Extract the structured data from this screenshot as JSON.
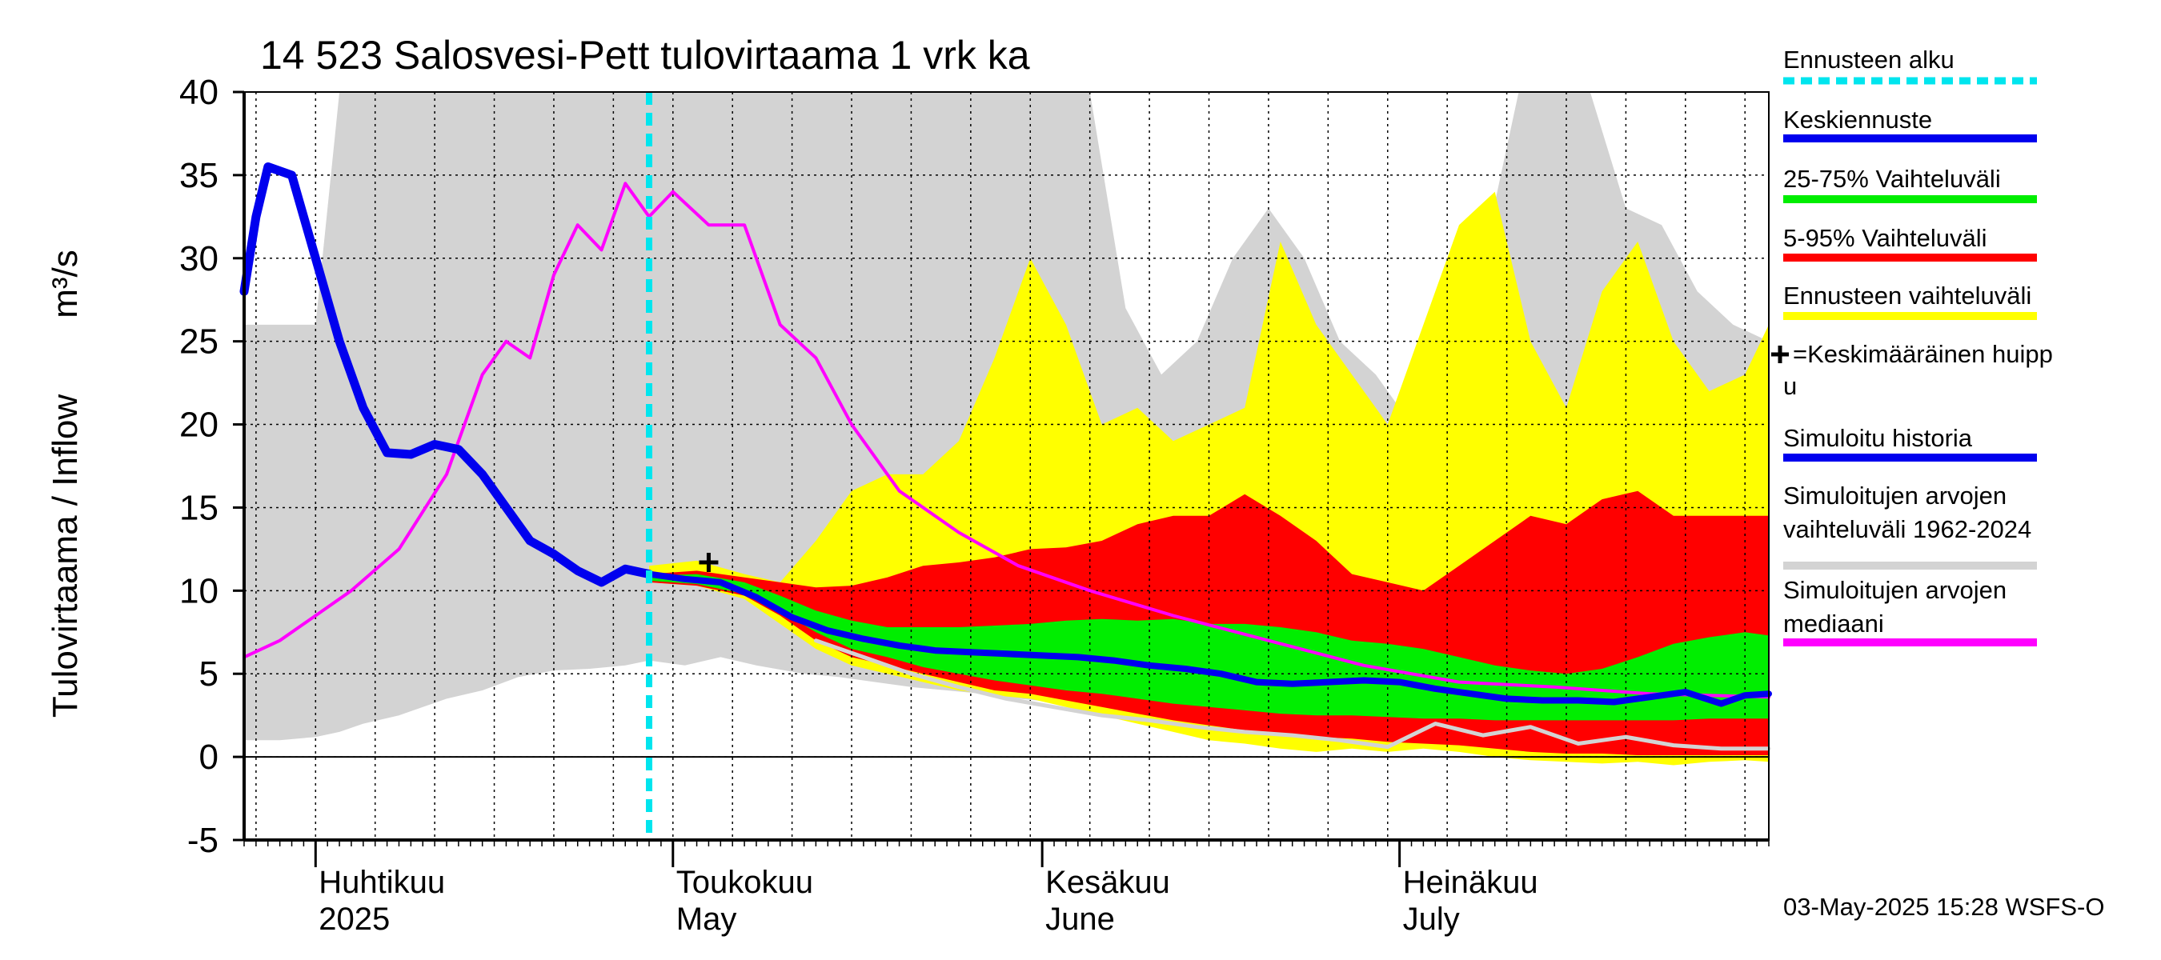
{
  "chart_data": {
    "type": "area",
    "title": "14 523 Salosvesi-Pett tulovirtaama 1 vrk ka",
    "ylabel": "Tulovirtaama / Inflow",
    "yunit": "m³/s",
    "ylim": [
      -5,
      40
    ],
    "yticks": [
      -5,
      0,
      5,
      10,
      15,
      20,
      25,
      30,
      35,
      40
    ],
    "xlim": [
      "2025-03-26",
      "2025-08-01"
    ],
    "grid": true,
    "legend_position": "right",
    "month_labels": [
      {
        "fi": "Huhtikuu",
        "en": "2025",
        "date": "2025-04-01"
      },
      {
        "fi": "Toukokuu",
        "en": "May",
        "date": "2025-05-01"
      },
      {
        "fi": "Kesäkuu",
        "en": "June",
        "date": "2025-06-01"
      },
      {
        "fi": "Heinäkuu",
        "en": "July",
        "date": "2025-07-01"
      }
    ],
    "forecast_start": "2025-04-29",
    "mean_peak": {
      "date": "2025-05-04",
      "value": 11.7
    },
    "colors": {
      "historical_range": "#d3d3d3",
      "forecast_range": "#ffff00",
      "p5_95": "#ff0000",
      "p25_75": "#00ee00",
      "mean_forecast": "#0000ee",
      "simulated_history": "#0000ee",
      "median": "#ff00ff",
      "forecast_start": "#00e5ee",
      "example": "#d3d3d3"
    },
    "series": {
      "historical_range": {
        "x": [
          "2025-03-26",
          "2025-03-29",
          "2025-04-01",
          "2025-04-03",
          "2025-04-05",
          "2025-04-08",
          "2025-04-12",
          "2025-04-15",
          "2025-04-18",
          "2025-04-21",
          "2025-04-24",
          "2025-04-27",
          "2025-04-29",
          "2025-05-02",
          "2025-05-05",
          "2025-05-08",
          "2025-05-12",
          "2025-05-15",
          "2025-05-18",
          "2025-05-21",
          "2025-05-24",
          "2025-05-27",
          "2025-05-30",
          "2025-06-02",
          "2025-06-05",
          "2025-06-08",
          "2025-06-11",
          "2025-06-14",
          "2025-06-17",
          "2025-06-20",
          "2025-06-23",
          "2025-06-26",
          "2025-06-29",
          "2025-07-02",
          "2025-07-05",
          "2025-07-08",
          "2025-07-11",
          "2025-07-14",
          "2025-07-17",
          "2025-07-20",
          "2025-07-23",
          "2025-07-26",
          "2025-07-29",
          "2025-08-01"
        ],
        "low": [
          1,
          1,
          1.2,
          1.5,
          2,
          2.5,
          3.5,
          4,
          4.8,
          5.2,
          5.3,
          5.5,
          5.8,
          5.5,
          6,
          5.5,
          5,
          4.8,
          4.5,
          4.2,
          4,
          3.8,
          3.5,
          3.3,
          3,
          2.8,
          2.7,
          2.5,
          2.2,
          2,
          1.8,
          1.6,
          1.3,
          1.2,
          1,
          0.8,
          0.3,
          0.5,
          0.8,
          1,
          1.2,
          1.2,
          1,
          1
        ],
        "high": [
          26,
          26,
          26,
          40,
          40,
          40,
          40,
          40,
          40,
          40,
          40,
          40,
          40,
          40,
          40,
          40,
          40,
          40,
          40,
          40,
          40,
          40,
          40,
          40,
          40,
          27,
          23,
          25,
          30,
          33,
          30,
          25,
          23,
          20,
          22,
          30,
          40,
          40,
          40,
          33,
          32,
          28,
          26,
          25
        ]
      },
      "forecast_range": {
        "x": [
          "2025-04-29",
          "2025-05-03",
          "2025-05-07",
          "2025-05-10",
          "2025-05-13",
          "2025-05-16",
          "2025-05-19",
          "2025-05-22",
          "2025-05-25",
          "2025-05-28",
          "2025-05-31",
          "2025-06-03",
          "2025-06-06",
          "2025-06-09",
          "2025-06-12",
          "2025-06-15",
          "2025-06-18",
          "2025-06-21",
          "2025-06-24",
          "2025-06-27",
          "2025-06-30",
          "2025-07-03",
          "2025-07-06",
          "2025-07-09",
          "2025-07-12",
          "2025-07-15",
          "2025-07-18",
          "2025-07-21",
          "2025-07-24",
          "2025-07-27",
          "2025-07-30",
          "2025-08-01"
        ],
        "low": [
          10.5,
          10.3,
          9.5,
          8,
          6.5,
          5.5,
          5,
          4.5,
          4,
          3.7,
          3.5,
          3,
          2.5,
          2,
          1.5,
          1,
          0.8,
          0.5,
          0.3,
          0.5,
          0.3,
          0.5,
          0.3,
          0,
          -0.2,
          -0.3,
          -0.4,
          -0.3,
          -0.5,
          -0.3,
          -0.2,
          -0.3
        ],
        "high": [
          11.5,
          11.8,
          11,
          10.5,
          13,
          16,
          17,
          17,
          19,
          24,
          30,
          26,
          20,
          21,
          19,
          20,
          21,
          31,
          26,
          23,
          20,
          26,
          32,
          34,
          25,
          21,
          28,
          31,
          25,
          22,
          23,
          26
        ]
      },
      "p5_95": {
        "x": [
          "2025-04-29",
          "2025-05-03",
          "2025-05-07",
          "2025-05-10",
          "2025-05-13",
          "2025-05-16",
          "2025-05-19",
          "2025-05-22",
          "2025-05-25",
          "2025-05-28",
          "2025-05-31",
          "2025-06-03",
          "2025-06-06",
          "2025-06-09",
          "2025-06-12",
          "2025-06-15",
          "2025-06-18",
          "2025-06-21",
          "2025-06-24",
          "2025-06-27",
          "2025-06-30",
          "2025-07-03",
          "2025-07-06",
          "2025-07-09",
          "2025-07-12",
          "2025-07-15",
          "2025-07-18",
          "2025-07-21",
          "2025-07-24",
          "2025-07-27",
          "2025-07-30",
          "2025-08-01"
        ],
        "low": [
          10.5,
          10.3,
          9.7,
          8.5,
          7,
          6,
          5.5,
          5,
          4.5,
          4,
          3.8,
          3.4,
          3,
          2.6,
          2.2,
          1.9,
          1.6,
          1.3,
          1.2,
          1.1,
          0.9,
          0.8,
          0.7,
          0.5,
          0.3,
          0.2,
          0.2,
          0.1,
          0.1,
          0.1,
          0.1,
          0.1
        ],
        "high": [
          11,
          11.2,
          10.8,
          10.5,
          10.2,
          10.3,
          10.8,
          11.5,
          11.7,
          12,
          12.5,
          12.6,
          13,
          14,
          14.5,
          14.5,
          15.8,
          14.5,
          13,
          11,
          10.5,
          10,
          11.5,
          13,
          14.5,
          14,
          15.5,
          16,
          14.5,
          14.5,
          14.5,
          14.5
        ]
      },
      "p25_75": {
        "x": [
          "2025-04-29",
          "2025-05-03",
          "2025-05-07",
          "2025-05-10",
          "2025-05-13",
          "2025-05-16",
          "2025-05-19",
          "2025-05-22",
          "2025-05-25",
          "2025-05-28",
          "2025-05-31",
          "2025-06-03",
          "2025-06-06",
          "2025-06-09",
          "2025-06-12",
          "2025-06-15",
          "2025-06-18",
          "2025-06-21",
          "2025-06-24",
          "2025-06-27",
          "2025-06-30",
          "2025-07-03",
          "2025-07-06",
          "2025-07-09",
          "2025-07-12",
          "2025-07-15",
          "2025-07-18",
          "2025-07-21",
          "2025-07-24",
          "2025-07-27",
          "2025-07-30",
          "2025-08-01"
        ],
        "low": [
          10.6,
          10.4,
          9.8,
          8.8,
          7.5,
          6.5,
          6,
          5.4,
          5,
          4.6,
          4.3,
          4,
          3.8,
          3.5,
          3.2,
          3,
          2.8,
          2.6,
          2.5,
          2.5,
          2.4,
          2.3,
          2.3,
          2.2,
          2.2,
          2.2,
          2.2,
          2.2,
          2.2,
          2.3,
          2.3,
          2.3
        ],
        "high": [
          10.9,
          11,
          10.5,
          9.7,
          8.8,
          8.2,
          7.8,
          7.8,
          7.8,
          7.9,
          8,
          8.2,
          8.3,
          8.2,
          8.3,
          8,
          8,
          7.8,
          7.5,
          7,
          6.8,
          6.5,
          6,
          5.5,
          5.2,
          5,
          5.3,
          6,
          6.8,
          7.2,
          7.5,
          7.3
        ]
      },
      "mean_forecast": {
        "x": [
          "2025-04-29",
          "2025-05-02",
          "2025-05-05",
          "2025-05-08",
          "2025-05-11",
          "2025-05-14",
          "2025-05-17",
          "2025-05-20",
          "2025-05-23",
          "2025-05-26",
          "2025-05-29",
          "2025-06-01",
          "2025-06-04",
          "2025-06-07",
          "2025-06-10",
          "2025-06-13",
          "2025-06-16",
          "2025-06-19",
          "2025-06-22",
          "2025-06-25",
          "2025-06-28",
          "2025-07-01",
          "2025-07-04",
          "2025-07-07",
          "2025-07-10",
          "2025-07-13",
          "2025-07-16",
          "2025-07-19",
          "2025-07-22",
          "2025-07-25",
          "2025-07-28",
          "2025-07-30",
          "2025-08-01"
        ],
        "values": [
          11,
          10.7,
          10.5,
          9.6,
          8.4,
          7.6,
          7.1,
          6.7,
          6.4,
          6.3,
          6.2,
          6.1,
          6,
          5.8,
          5.5,
          5.3,
          5,
          4.5,
          4.4,
          4.5,
          4.6,
          4.5,
          4.1,
          3.8,
          3.5,
          3.4,
          3.4,
          3.3,
          3.6,
          3.9,
          3.2,
          3.7,
          3.8
        ]
      },
      "simulated_history": {
        "x": [
          "2025-03-26",
          "2025-03-27",
          "2025-03-28",
          "2025-03-30",
          "2025-04-01",
          "2025-04-03",
          "2025-04-05",
          "2025-04-07",
          "2025-04-09",
          "2025-04-11",
          "2025-04-13",
          "2025-04-15",
          "2025-04-17",
          "2025-04-19",
          "2025-04-21",
          "2025-04-23",
          "2025-04-25",
          "2025-04-27",
          "2025-04-29"
        ],
        "values": [
          28,
          32.5,
          35.5,
          35,
          30,
          25,
          21,
          18.3,
          18.2,
          18.8,
          18.5,
          17,
          15,
          13,
          12.2,
          11.2,
          10.5,
          11.3,
          11
        ]
      },
      "median": {
        "x": [
          "2025-03-26",
          "2025-03-29",
          "2025-04-01",
          "2025-04-04",
          "2025-04-08",
          "2025-04-12",
          "2025-04-15",
          "2025-04-17",
          "2025-04-19",
          "2025-04-21",
          "2025-04-23",
          "2025-04-25",
          "2025-04-27",
          "2025-04-29",
          "2025-05-01",
          "2025-05-04",
          "2025-05-07",
          "2025-05-10",
          "2025-05-13",
          "2025-05-16",
          "2025-05-20",
          "2025-05-25",
          "2025-05-30",
          "2025-06-05",
          "2025-06-12",
          "2025-06-20",
          "2025-06-28",
          "2025-07-06",
          "2025-07-14",
          "2025-07-22",
          "2025-08-01"
        ],
        "values": [
          6,
          7,
          8.5,
          10,
          12.5,
          17,
          23,
          25,
          24,
          29,
          32,
          30.5,
          34.5,
          32.5,
          34,
          32,
          32,
          26,
          24,
          20,
          16,
          13.5,
          11.5,
          10,
          8.5,
          7,
          5.5,
          4.5,
          4.2,
          3.8,
          3.6
        ]
      },
      "example": {
        "x": [
          "2025-05-13",
          "2025-05-17",
          "2025-05-21",
          "2025-05-25",
          "2025-05-29",
          "2025-06-02",
          "2025-06-06",
          "2025-06-10",
          "2025-06-14",
          "2025-06-18",
          "2025-06-22",
          "2025-06-26",
          "2025-06-30",
          "2025-07-04",
          "2025-07-08",
          "2025-07-12",
          "2025-07-16",
          "2025-07-20",
          "2025-07-24",
          "2025-07-28",
          "2025-08-01"
        ],
        "values": [
          7,
          6,
          5,
          4.2,
          3.5,
          3,
          2.5,
          2.2,
          1.8,
          1.5,
          1.3,
          1,
          0.6,
          2,
          1.3,
          1.8,
          0.8,
          1.2,
          0.7,
          0.5,
          0.5
        ]
      }
    },
    "legend": [
      {
        "label": "Ennusteen alku",
        "style": "dash",
        "color": "#00e5ee"
      },
      {
        "label": "Keskiennuste",
        "style": "line",
        "color": "#0000ee"
      },
      {
        "label": "25-75% Vaihteluväli",
        "style": "line",
        "color": "#00ee00"
      },
      {
        "label": "5-95% Vaihteluväli",
        "style": "line",
        "color": "#ff0000"
      },
      {
        "label": "Ennusteen vaihteluväli",
        "style": "line",
        "color": "#ffff00"
      },
      {
        "label": "=Keskimääräinen huipp",
        "label2": "u",
        "style": "plus",
        "color": "#000000"
      },
      {
        "label": "Simuloitu historia",
        "style": "line",
        "color": "#0000ee"
      },
      {
        "label": "Simuloitujen arvojen",
        "label2": "vaihteluväli 1962-2024",
        "style": "line",
        "color": "#d3d3d3"
      },
      {
        "label": "Simuloitujen arvojen",
        "label2": "mediaani",
        "style": "line",
        "color": "#ff00ff"
      }
    ],
    "timestamp": "03-May-2025 15:28 WSFS-O"
  }
}
